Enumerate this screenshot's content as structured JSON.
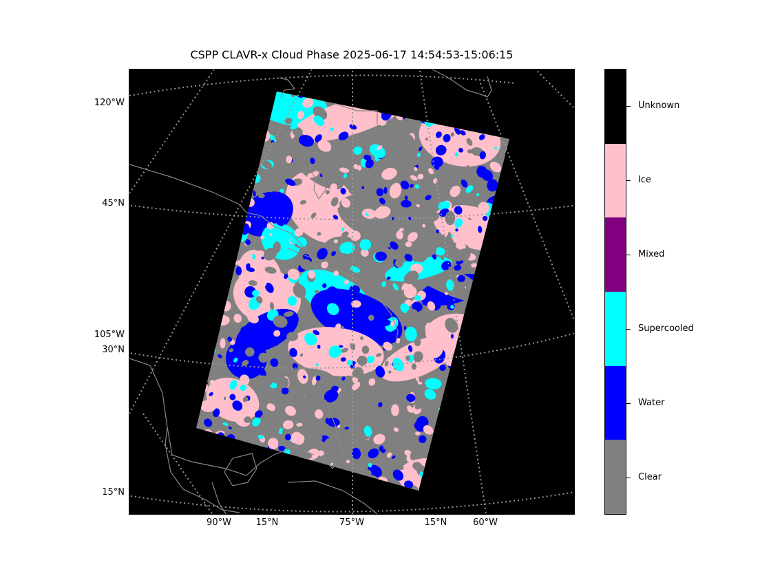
{
  "title": "CSPP CLAVR-x Cloud Phase 2025-06-17 14:54:53-15:06:15",
  "map": {
    "background_color": "#000000",
    "coastline_color": "#888888",
    "gridline_color": "#999999",
    "gridline_style": "dotted",
    "left_labels": [
      {
        "text": "120°W",
        "id": "120w"
      },
      {
        "text": "45°N",
        "id": "45n"
      },
      {
        "text": "105°W",
        "id": "105w"
      },
      {
        "text": "30°N",
        "id": "30n"
      },
      {
        "text": "15°N",
        "id": "15n"
      }
    ],
    "bottom_labels": [
      {
        "text": "90°W",
        "id": "90w"
      },
      {
        "text": "15°N",
        "id": "15n-a"
      },
      {
        "text": "75°W",
        "id": "75w"
      },
      {
        "text": "15°N",
        "id": "15n-b"
      },
      {
        "text": "60°W",
        "id": "60w"
      }
    ]
  },
  "legend": {
    "categories": [
      {
        "name": "Unknown",
        "color": "#000000"
      },
      {
        "name": "Ice",
        "color": "#ffc0cb"
      },
      {
        "name": "Mixed",
        "color": "#800080"
      },
      {
        "name": "Supercooled",
        "color": "#00ffff"
      },
      {
        "name": "Water",
        "color": "#0000ff"
      },
      {
        "name": "Clear",
        "color": "#808080"
      }
    ]
  }
}
